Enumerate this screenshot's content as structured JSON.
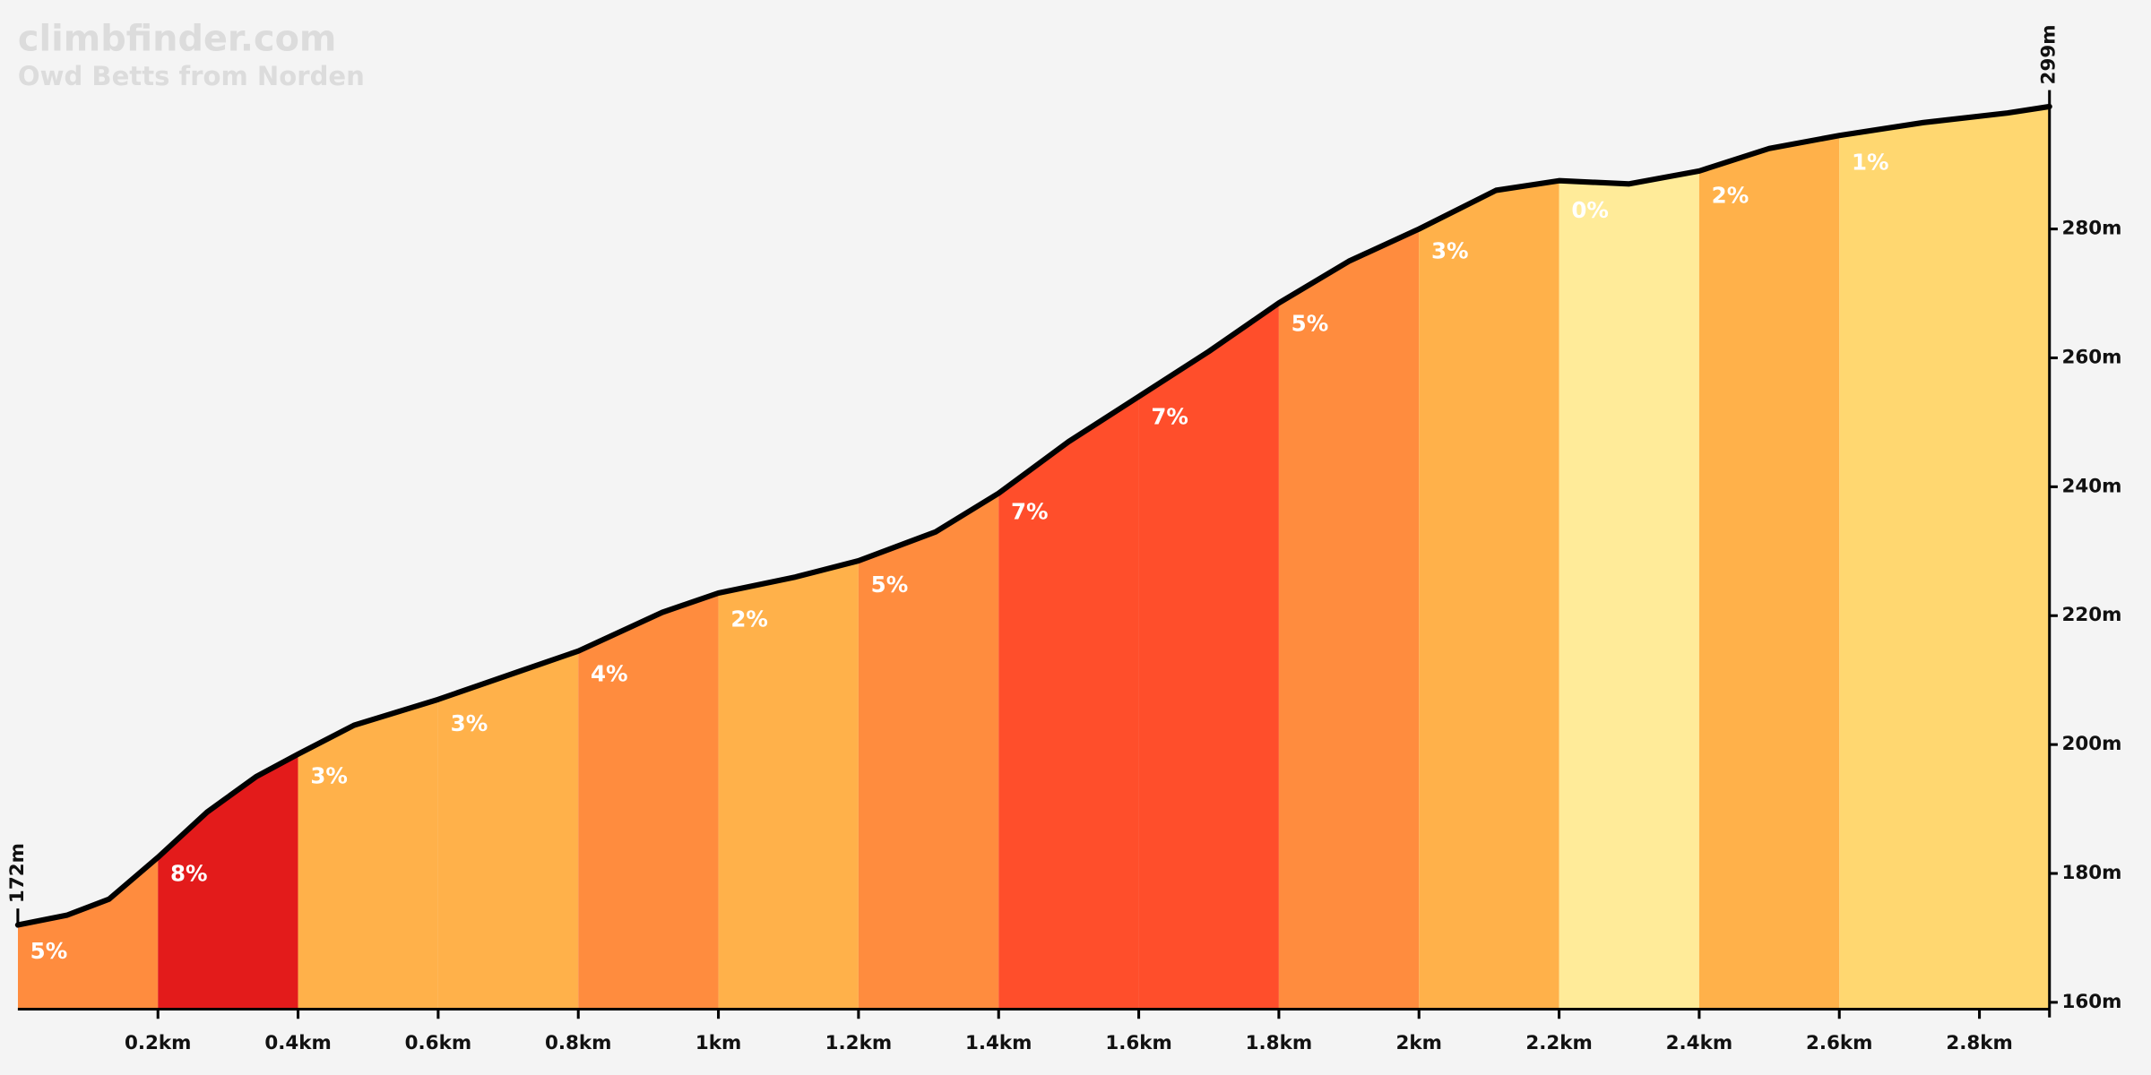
{
  "chart_data": {
    "type": "elevation_profile",
    "title": "climbfinder.com",
    "subtitle": "Owd Betts from Norden",
    "x": [
      0,
      0.07,
      0.13,
      0.2,
      0.27,
      0.34,
      0.4,
      0.48,
      0.6,
      0.72,
      0.8,
      0.92,
      1.0,
      1.11,
      1.2,
      1.31,
      1.4,
      1.5,
      1.6,
      1.7,
      1.8,
      1.9,
      2.0,
      2.11,
      2.2,
      2.3,
      2.4,
      2.5,
      2.6,
      2.72,
      2.84,
      2.9
    ],
    "values": [
      172,
      173.5,
      176,
      182.5,
      189.5,
      195,
      198.5,
      203,
      207,
      211.5,
      214.5,
      220.5,
      223.5,
      226,
      228.5,
      233,
      239,
      247,
      254,
      261,
      268.5,
      275,
      280,
      286,
      287.5,
      287,
      289,
      292.5,
      294.5,
      296.5,
      298,
      299
    ],
    "line_color": "#000000",
    "segments": {
      "bounds": [
        0,
        0.2,
        0.4,
        0.6,
        0.8,
        1.0,
        1.2,
        1.4,
        1.6,
        1.8,
        2.0,
        2.2,
        2.4,
        2.6,
        2.9
      ],
      "values": [
        5,
        8,
        3,
        3,
        4,
        2,
        5,
        7,
        7,
        5,
        3,
        0,
        2,
        1
      ],
      "value_labels": [
        "5%",
        "8%",
        "3%",
        "3%",
        "4%",
        "2%",
        "5%",
        "7%",
        "7%",
        "5%",
        "3%",
        "0%",
        "2%",
        "1%"
      ],
      "colors": [
        "#ff8c3e",
        "#e31b1b",
        "#ffb14a",
        "#ffb14a",
        "#ff8c3e",
        "#ffb14a",
        "#ff8c3e",
        "#ff4e2b",
        "#ff4e2b",
        "#ff8c3e",
        "#ffb14a",
        "#ffeb99",
        "#ffb14a",
        "#ffd770"
      ]
    },
    "xlim": [
      0,
      2.9
    ],
    "ylim": [
      160,
      299
    ],
    "xticks": [
      {
        "value": 0.2,
        "label": "0.2km"
      },
      {
        "value": 0.4,
        "label": "0.4km"
      },
      {
        "value": 0.6,
        "label": "0.6km"
      },
      {
        "value": 0.8,
        "label": "0.8km"
      },
      {
        "value": 1,
        "label": "1km"
      },
      {
        "value": 1.2,
        "label": "1.2km"
      },
      {
        "value": 1.4,
        "label": "1.4km"
      },
      {
        "value": 1.6,
        "label": "1.6km"
      },
      {
        "value": 1.8,
        "label": "1.8km"
      },
      {
        "value": 2,
        "label": "2km"
      },
      {
        "value": 2.2,
        "label": "2.2km"
      },
      {
        "value": 2.4,
        "label": "2.4km"
      },
      {
        "value": 2.6,
        "label": "2.6km"
      },
      {
        "value": 2.8,
        "label": "2.8km"
      }
    ],
    "yticks": [
      {
        "value": 160,
        "label": "160m"
      },
      {
        "value": 180,
        "label": "180m"
      },
      {
        "value": 200,
        "label": "200m"
      },
      {
        "value": 220,
        "label": "220m"
      },
      {
        "value": 240,
        "label": "240m"
      },
      {
        "value": 260,
        "label": "260m"
      },
      {
        "value": 280,
        "label": "280m"
      }
    ],
    "annotations": [
      {
        "value": 172,
        "label": "172m"
      },
      {
        "value": 299,
        "label": "299m"
      }
    ]
  }
}
